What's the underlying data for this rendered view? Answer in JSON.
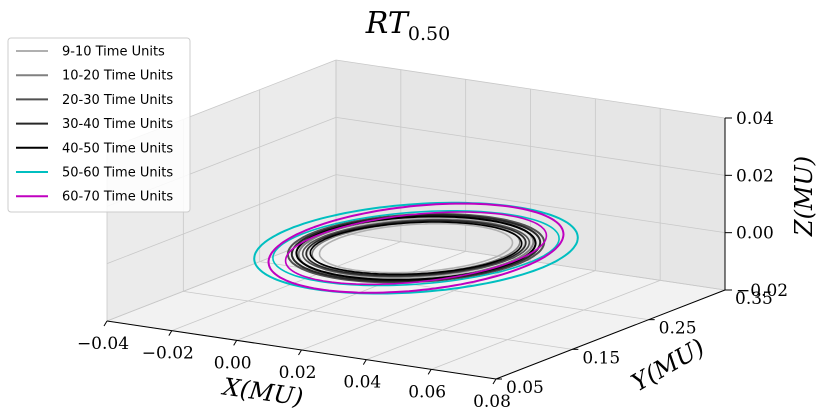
{
  "chart_data": {
    "type": "line",
    "projection": "3d",
    "title": "RT",
    "title_subscript": "0.50",
    "xlabel": "X(MU)",
    "ylabel": "Y(MU)",
    "zlabel": "Z(MU)",
    "xlim": [
      -0.04,
      0.08
    ],
    "ylim": [
      0.05,
      0.35
    ],
    "zlim": [
      -0.02,
      0.04
    ],
    "x_ticks": [
      "−0.04",
      "−0.02",
      "0.00",
      "0.02",
      "0.04",
      "0.06",
      "0.08"
    ],
    "y_ticks": [
      "0.05",
      "0.15",
      "0.25",
      "0.35"
    ],
    "z_ticks": [
      "−0.02",
      "0.00",
      "0.02",
      "0.04"
    ],
    "grid": true,
    "legend_position": "top-left",
    "series": [
      {
        "name": "9-10 Time Units",
        "color": "#b0b0b0",
        "orbit": {
          "cx": 0.02,
          "cy": 0.2,
          "cz": 0.0,
          "rx": 0.03,
          "ry": 0.065,
          "tz": 0.004
        }
      },
      {
        "name": "10-20 Time Units",
        "color": "#808080",
        "orbit": {
          "cx": 0.02,
          "cy": 0.2,
          "cz": 0.0,
          "rx": 0.032,
          "ry": 0.072,
          "tz": 0.004
        }
      },
      {
        "name": "20-30 Time Units",
        "color": "#505050",
        "orbit": {
          "cx": 0.02,
          "cy": 0.2,
          "cz": 0.0,
          "rx": 0.035,
          "ry": 0.078,
          "tz": 0.004
        }
      },
      {
        "name": "30-40 Time Units",
        "color": "#282828",
        "orbit": {
          "cx": 0.02,
          "cy": 0.2,
          "cz": 0.0,
          "rx": 0.034,
          "ry": 0.075,
          "tz": 0.004
        }
      },
      {
        "name": "40-50 Time Units",
        "color": "#000000",
        "orbit": {
          "cx": 0.02,
          "cy": 0.2,
          "cz": 0.0,
          "rx": 0.033,
          "ry": 0.07,
          "tz": 0.004
        }
      },
      {
        "name": "50-60 Time Units",
        "color": "#00bfc0",
        "orbit": {
          "cx": 0.02,
          "cy": 0.2,
          "cz": 0.0,
          "rx": 0.044,
          "ry": 0.1,
          "tz": 0.006
        }
      },
      {
        "name": "60-70 Time Units",
        "color": "#c000c0",
        "orbit": {
          "cx": 0.02,
          "cy": 0.2,
          "cz": 0.0,
          "rx": 0.04,
          "ry": 0.092,
          "tz": 0.007
        }
      }
    ]
  }
}
